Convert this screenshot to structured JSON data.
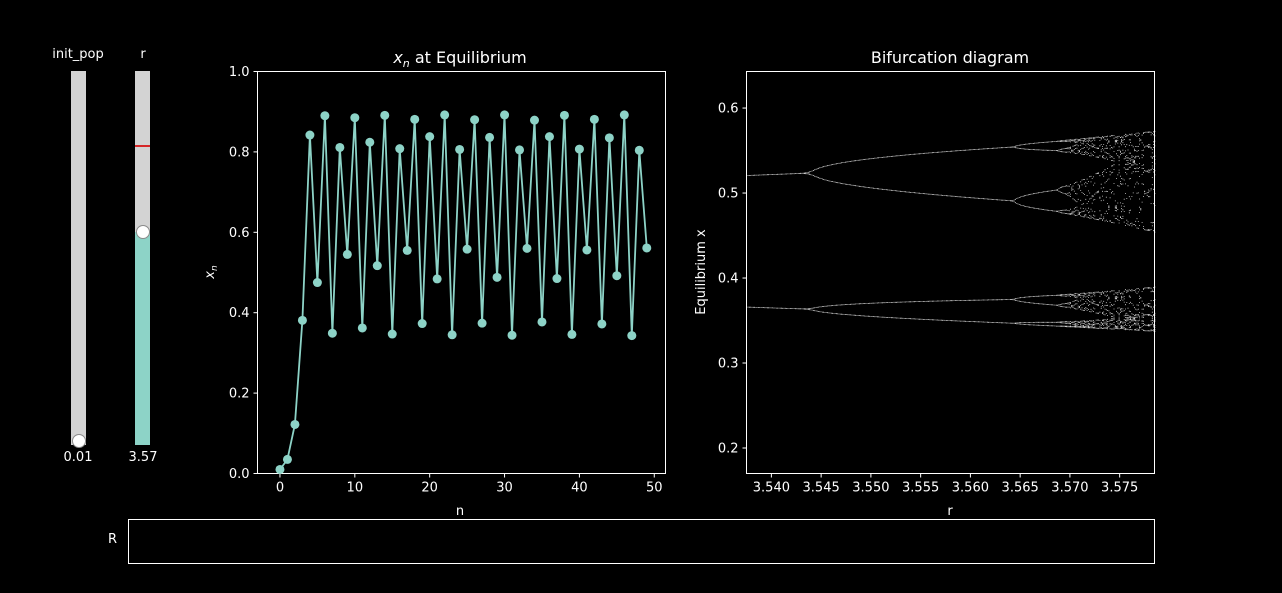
{
  "sliders": {
    "init_pop": {
      "label": "init_pop",
      "value": 0.01,
      "value_text": "0.01",
      "min": 0,
      "max": 1
    },
    "r": {
      "label": "r",
      "value": 3.57,
      "value_text": "3.57",
      "min": 3.0,
      "max": 4.0,
      "marker_value": 3.8
    }
  },
  "colors": {
    "accent": "#8dd3c7",
    "track": "#d3d3d3",
    "marker": "#d62728",
    "background": "#000000"
  },
  "chart_data": [
    {
      "type": "line",
      "title_italic": "x",
      "title_sub": "n",
      "title_rest": " at Equilibrium",
      "xlabel": "n",
      "ylabel_italic": "x",
      "ylabel_sub": "n",
      "xlim": [
        -3,
        51.5
      ],
      "ylim": [
        0,
        1.0
      ],
      "xticks": [
        0,
        10,
        20,
        30,
        40,
        50
      ],
      "xtick_labels": [
        "0",
        "10",
        "20",
        "30",
        "40",
        "50"
      ],
      "yticks": [
        0.0,
        0.2,
        0.4,
        0.6,
        0.8,
        1.0
      ],
      "ytick_labels": [
        "0.0",
        "0.2",
        "0.4",
        "0.6",
        "0.8",
        "1.0"
      ],
      "x": [
        0,
        1,
        2,
        3,
        4,
        5,
        6,
        7,
        8,
        9,
        10,
        11,
        12,
        13,
        14,
        15,
        16,
        17,
        18,
        19,
        20,
        21,
        22,
        23,
        24,
        25,
        26,
        27,
        28,
        29,
        30,
        31,
        32,
        33,
        34,
        35,
        36,
        37,
        38,
        39,
        40,
        41,
        42,
        43,
        44,
        45,
        46,
        47,
        48,
        49
      ],
      "y": [
        0.01,
        0.035,
        0.122,
        0.381,
        0.842,
        0.475,
        0.89,
        0.349,
        0.811,
        0.545,
        0.885,
        0.362,
        0.824,
        0.517,
        0.891,
        0.347,
        0.808,
        0.555,
        0.881,
        0.373,
        0.838,
        0.484,
        0.892,
        0.345,
        0.806,
        0.558,
        0.88,
        0.374,
        0.836,
        0.488,
        0.892,
        0.344,
        0.805,
        0.56,
        0.879,
        0.377,
        0.838,
        0.485,
        0.891,
        0.346,
        0.807,
        0.556,
        0.881,
        0.372,
        0.835,
        0.492,
        0.892,
        0.343,
        0.804,
        0.561
      ]
    },
    {
      "type": "scatter",
      "title": "Bifurcation diagram",
      "xlabel": "r",
      "ylabel": "Equilibrium x",
      "xlim": [
        3.5375,
        3.5785
      ],
      "ylim": [
        0.17,
        0.643
      ],
      "xticks": [
        3.54,
        3.545,
        3.55,
        3.555,
        3.56,
        3.565,
        3.57,
        3.575
      ],
      "xtick_labels": [
        "3.540",
        "3.545",
        "3.550",
        "3.555",
        "3.560",
        "3.565",
        "3.570",
        "3.575"
      ],
      "yticks": [
        0.2,
        0.3,
        0.4,
        0.5,
        0.6
      ],
      "ytick_labels": [
        "0.2",
        "0.3",
        "0.4",
        "0.5",
        "0.6"
      ]
    }
  ],
  "r_box": {
    "label": "R"
  }
}
